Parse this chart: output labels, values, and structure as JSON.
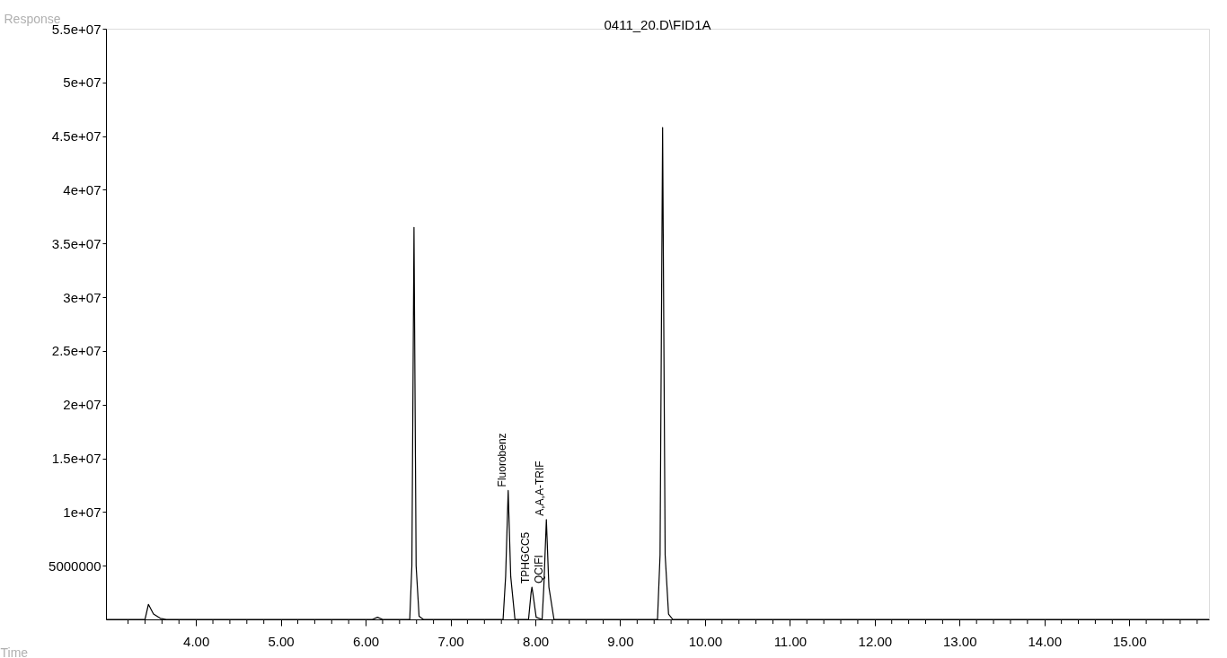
{
  "chart_data": {
    "type": "line",
    "title": "0411_20.D\\FID1A",
    "xlabel": "Time",
    "ylabel": "Response",
    "x": [
      2.94,
      3.4,
      3.44,
      3.5,
      3.58,
      3.65,
      6.08,
      6.14,
      6.2,
      6.52,
      6.545,
      6.57,
      6.595,
      6.63,
      6.68,
      7.62,
      7.65,
      7.68,
      7.71,
      7.76,
      7.92,
      7.95,
      7.96,
      7.97,
      8.01,
      8.08,
      8.1,
      8.13,
      8.16,
      8.22,
      9.44,
      9.47,
      9.5,
      9.53,
      9.57,
      9.62,
      15.94
    ],
    "series": [
      {
        "color": "#000000",
        "values": [
          0,
          0,
          1400000,
          500000,
          100000,
          0,
          0,
          200000,
          0,
          0,
          5000000,
          36500000,
          5000000,
          300000,
          0,
          0,
          4000000,
          12000000,
          4000000,
          0,
          0,
          2500000,
          3000000,
          2500000,
          200000,
          0,
          3000000,
          9300000,
          3000000,
          0,
          0,
          6000000,
          45800000,
          6000000,
          500000,
          0,
          0
        ]
      }
    ],
    "xlim": [
      2.94,
      15.94
    ],
    "ylim": [
      0,
      55000000
    ],
    "xticks": [
      {
        "value": 3.2,
        "label": null
      },
      {
        "value": 3.4,
        "label": null
      },
      {
        "value": 3.6,
        "label": null
      },
      {
        "value": 3.8,
        "label": null
      },
      {
        "value": 4,
        "label": "4.00"
      },
      {
        "value": 4.2,
        "label": null
      },
      {
        "value": 4.4,
        "label": null
      },
      {
        "value": 4.6,
        "label": null
      },
      {
        "value": 4.8,
        "label": null
      },
      {
        "value": 5,
        "label": "5.00"
      },
      {
        "value": 5.2,
        "label": null
      },
      {
        "value": 5.4,
        "label": null
      },
      {
        "value": 5.6,
        "label": null
      },
      {
        "value": 5.8,
        "label": null
      },
      {
        "value": 6,
        "label": "6.00"
      },
      {
        "value": 6.2,
        "label": null
      },
      {
        "value": 6.4,
        "label": null
      },
      {
        "value": 6.6,
        "label": null
      },
      {
        "value": 6.8,
        "label": null
      },
      {
        "value": 7,
        "label": "7.00"
      },
      {
        "value": 7.2,
        "label": null
      },
      {
        "value": 7.4,
        "label": null
      },
      {
        "value": 7.6,
        "label": null
      },
      {
        "value": 7.8,
        "label": null
      },
      {
        "value": 8,
        "label": "8.00"
      },
      {
        "value": 8.2,
        "label": null
      },
      {
        "value": 8.4,
        "label": null
      },
      {
        "value": 8.6,
        "label": null
      },
      {
        "value": 8.8,
        "label": null
      },
      {
        "value": 9,
        "label": "9.00"
      },
      {
        "value": 9.2,
        "label": null
      },
      {
        "value": 9.4,
        "label": null
      },
      {
        "value": 9.6,
        "label": null
      },
      {
        "value": 9.8,
        "label": null
      },
      {
        "value": 10,
        "label": "10.00"
      },
      {
        "value": 10.2,
        "label": null
      },
      {
        "value": 10.4,
        "label": null
      },
      {
        "value": 10.6,
        "label": null
      },
      {
        "value": 10.8,
        "label": null
      },
      {
        "value": 11,
        "label": "11.00"
      },
      {
        "value": 11.2,
        "label": null
      },
      {
        "value": 11.4,
        "label": null
      },
      {
        "value": 11.6,
        "label": null
      },
      {
        "value": 11.8,
        "label": null
      },
      {
        "value": 12,
        "label": "12.00"
      },
      {
        "value": 12.2,
        "label": null
      },
      {
        "value": 12.4,
        "label": null
      },
      {
        "value": 12.6,
        "label": null
      },
      {
        "value": 12.8,
        "label": null
      },
      {
        "value": 13,
        "label": "13.00"
      },
      {
        "value": 13.2,
        "label": null
      },
      {
        "value": 13.4,
        "label": null
      },
      {
        "value": 13.6,
        "label": null
      },
      {
        "value": 13.8,
        "label": null
      },
      {
        "value": 14,
        "label": "14.00"
      },
      {
        "value": 14.2,
        "label": null
      },
      {
        "value": 14.4,
        "label": null
      },
      {
        "value": 14.6,
        "label": null
      },
      {
        "value": 14.8,
        "label": null
      },
      {
        "value": 15,
        "label": "15.00"
      },
      {
        "value": 15.2,
        "label": null
      },
      {
        "value": 15.4,
        "label": null
      },
      {
        "value": 15.6,
        "label": null
      },
      {
        "value": 15.8,
        "label": null
      }
    ],
    "yticks": [
      5000000,
      {
        "value": 10000000,
        "label": "1e+07"
      },
      {
        "value": 15000000,
        "label": "1.5e+07"
      },
      {
        "value": 20000000,
        "label": "2e+07"
      },
      {
        "value": 25000000,
        "label": "2.5e+07"
      },
      {
        "value": 30000000,
        "label": "3e+07"
      },
      {
        "value": 35000000,
        "label": "3.5e+07"
      },
      {
        "value": 40000000,
        "label": "4e+07"
      },
      {
        "value": 45000000,
        "label": "4.5e+07"
      },
      {
        "value": 50000000,
        "label": "5e+07"
      },
      {
        "value": 55000000,
        "label": "5.5e+07"
      }
    ],
    "annotations": [
      {
        "text": "Fluorobenz",
        "x": 7.68,
        "y": 12000000
      },
      {
        "text": "TPHGCC5",
        "x": 7.96,
        "y": 3000000
      },
      {
        "text": "QCIFI",
        "x": 7.99,
        "y": 3000000
      },
      {
        "text": "A,A,A-TRIF",
        "x": 8.13,
        "y": 9300000
      }
    ],
    "grid": false,
    "marker": "none",
    "line_style": "solid"
  }
}
